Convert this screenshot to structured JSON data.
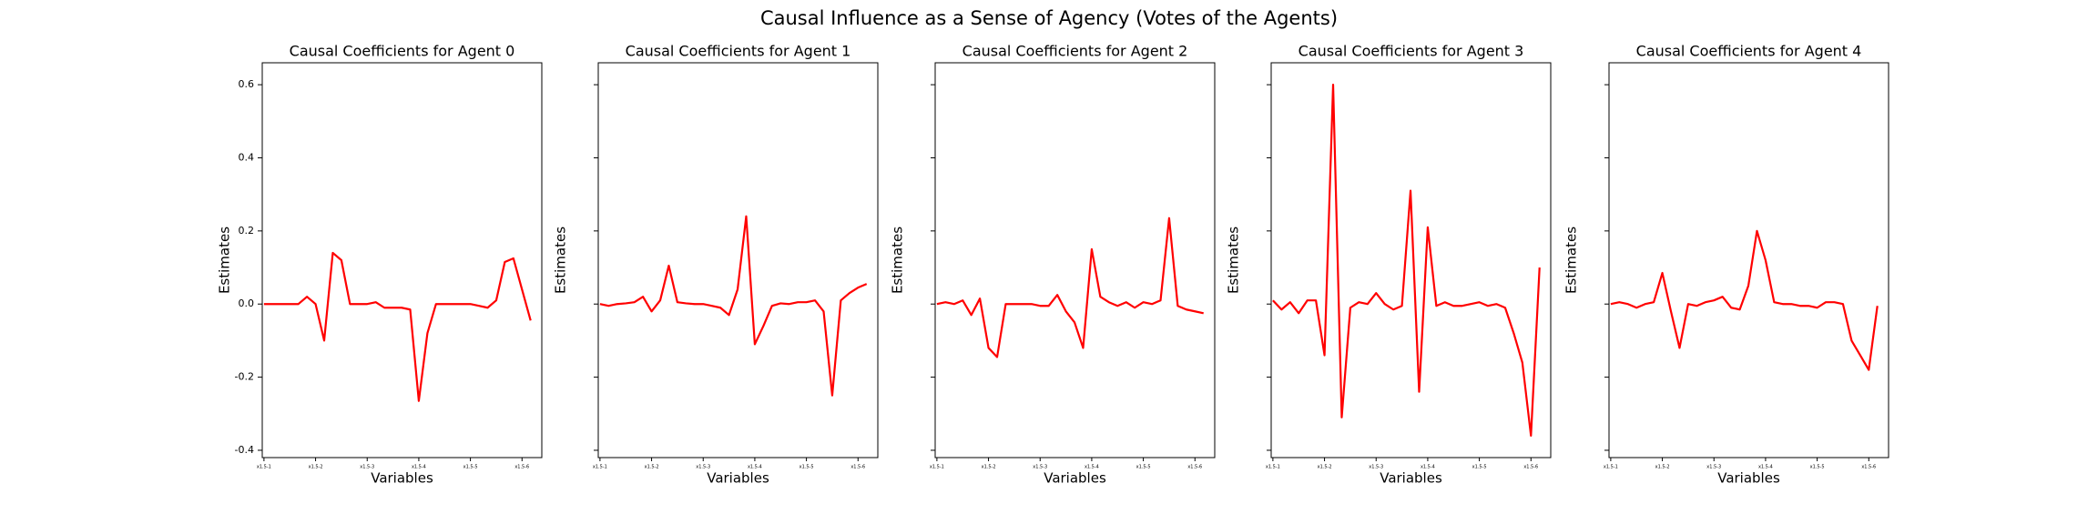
{
  "title": "Causal Influence as a Sense of Agency (Votes of the Agents)",
  "chart_data": [
    {
      "type": "line",
      "title": "Causal Coefficients for Agent 0",
      "xlabel": "Variables",
      "ylabel": "Estimates",
      "color": "#ff0000",
      "xlim": [
        -0.2,
        32.3
      ],
      "ylim": [
        -0.42,
        0.66
      ],
      "xticks": [
        {
          "value": 0,
          "label": "x1.5-1"
        },
        {
          "value": 6,
          "label": "x1.5-2"
        },
        {
          "value": 12,
          "label": "x1.5-3"
        },
        {
          "value": 18,
          "label": "x1.5-4"
        },
        {
          "value": 24,
          "label": "x1.5-5"
        },
        {
          "value": 30,
          "label": "x1.5-6"
        }
      ],
      "yticks": [
        -0.4,
        -0.2,
        {
          "value": 0,
          "label": "0.0"
        },
        0.2,
        0.4,
        0.6
      ],
      "x": [
        0,
        1,
        2,
        3,
        4,
        5,
        6,
        7,
        8,
        9,
        10,
        11,
        12,
        13,
        14,
        15,
        16,
        17,
        18,
        19,
        20,
        21,
        22,
        23,
        24,
        25,
        26,
        27,
        28,
        29,
        30,
        31
      ],
      "values": [
        0,
        0,
        0,
        0,
        0,
        0.02,
        0,
        -0.1,
        0.14,
        0.12,
        0,
        0,
        0,
        0.005,
        -0.01,
        -0.01,
        -0.01,
        -0.015,
        -0.265,
        -0.08,
        0,
        0,
        0,
        0,
        0,
        -0.005,
        -0.01,
        0.01,
        0.115,
        0.125,
        0.04,
        -0.045
      ]
    },
    {
      "type": "line",
      "title": "Causal Coefficients for Agent 1",
      "xlabel": "Variables",
      "ylabel": "Estimates",
      "color": "#ff0000",
      "xlim": [
        -0.2,
        32.3
      ],
      "ylim": [
        -0.42,
        0.66
      ],
      "xticks": [
        {
          "value": 0,
          "label": "x1.5-1"
        },
        {
          "value": 6,
          "label": "x1.5-2"
        },
        {
          "value": 12,
          "label": "x1.5-3"
        },
        {
          "value": 18,
          "label": "x1.5-4"
        },
        {
          "value": 24,
          "label": "x1.5-5"
        },
        {
          "value": 30,
          "label": "x1.5-6"
        }
      ],
      "x": [
        0,
        1,
        2,
        3,
        4,
        5,
        6,
        7,
        8,
        9,
        10,
        11,
        12,
        13,
        14,
        15,
        16,
        17,
        18,
        19,
        20,
        21,
        22,
        23,
        24,
        25,
        26,
        27,
        28,
        29,
        30,
        31
      ],
      "values": [
        0,
        -0.005,
        0,
        0.002,
        0.005,
        0.02,
        -0.02,
        0.01,
        0.105,
        0.005,
        0.002,
        0,
        0,
        -0.005,
        -0.01,
        -0.03,
        0.04,
        0.24,
        -0.11,
        -0.06,
        -0.005,
        0.002,
        0,
        0.005,
        0.005,
        0.01,
        -0.02,
        -0.25,
        0.01,
        0.03,
        0.045,
        0.055
      ]
    },
    {
      "type": "line",
      "title": "Causal Coefficients for Agent 2",
      "xlabel": "Variables",
      "ylabel": "Estimates",
      "color": "#ff0000",
      "xlim": [
        -0.2,
        32.3
      ],
      "ylim": [
        -0.42,
        0.66
      ],
      "xticks": [
        {
          "value": 0,
          "label": "x1.5-1"
        },
        {
          "value": 6,
          "label": "x1.5-2"
        },
        {
          "value": 12,
          "label": "x1.5-3"
        },
        {
          "value": 18,
          "label": "x1.5-4"
        },
        {
          "value": 24,
          "label": "x1.5-5"
        },
        {
          "value": 30,
          "label": "x1.5-6"
        }
      ],
      "x": [
        0,
        1,
        2,
        3,
        4,
        5,
        6,
        7,
        8,
        9,
        10,
        11,
        12,
        13,
        14,
        15,
        16,
        17,
        18,
        19,
        20,
        21,
        22,
        23,
        24,
        25,
        26,
        27,
        28,
        29,
        30,
        31
      ],
      "values": [
        0,
        0.005,
        0,
        0.01,
        -0.03,
        0.015,
        -0.12,
        -0.145,
        0,
        0,
        0,
        0,
        -0.005,
        -0.005,
        0.025,
        -0.02,
        -0.05,
        -0.12,
        0.15,
        0.02,
        0.005,
        -0.005,
        0.005,
        -0.01,
        0.005,
        0,
        0.01,
        0.235,
        -0.005,
        -0.015,
        -0.02,
        -0.025
      ]
    },
    {
      "type": "line",
      "title": "Causal Coefficients for Agent 3",
      "xlabel": "Variables",
      "ylabel": "Estimates",
      "color": "#ff0000",
      "xlim": [
        -0.2,
        32.3
      ],
      "ylim": [
        -0.42,
        0.66
      ],
      "xticks": [
        {
          "value": 0,
          "label": "x1.5-1"
        },
        {
          "value": 6,
          "label": "x1.5-2"
        },
        {
          "value": 12,
          "label": "x1.5-3"
        },
        {
          "value": 18,
          "label": "x1.5-4"
        },
        {
          "value": 24,
          "label": "x1.5-5"
        },
        {
          "value": 30,
          "label": "x1.5-6"
        }
      ],
      "x": [
        0,
        1,
        2,
        3,
        4,
        5,
        6,
        7,
        8,
        9,
        10,
        11,
        12,
        13,
        14,
        15,
        16,
        17,
        18,
        19,
        20,
        21,
        22,
        23,
        24,
        25,
        26,
        27,
        28,
        29,
        30,
        31
      ],
      "values": [
        0.01,
        -0.015,
        0.005,
        -0.025,
        0.01,
        0.01,
        -0.14,
        0.6,
        -0.31,
        -0.01,
        0.005,
        0,
        0.03,
        0,
        -0.015,
        -0.005,
        0.31,
        -0.24,
        0.21,
        -0.005,
        0.005,
        -0.005,
        -0.005,
        0,
        0.005,
        -0.005,
        0,
        -0.01,
        -0.08,
        -0.16,
        -0.36,
        0.1
      ]
    },
    {
      "type": "line",
      "title": "Causal Coefficients for Agent 4",
      "xlabel": "Variables",
      "ylabel": "Estimates",
      "color": "#ff0000",
      "xlim": [
        -0.2,
        32.3
      ],
      "ylim": [
        -0.42,
        0.66
      ],
      "xticks": [
        {
          "value": 0,
          "label": "x1.5-1"
        },
        {
          "value": 6,
          "label": "x1.5-2"
        },
        {
          "value": 12,
          "label": "x1.5-3"
        },
        {
          "value": 18,
          "label": "x1.5-4"
        },
        {
          "value": 24,
          "label": "x1.5-5"
        },
        {
          "value": 30,
          "label": "x1.5-6"
        }
      ],
      "x": [
        0,
        1,
        2,
        3,
        4,
        5,
        6,
        7,
        8,
        9,
        10,
        11,
        12,
        13,
        14,
        15,
        16,
        17,
        18,
        19,
        20,
        21,
        22,
        23,
        24,
        25,
        26,
        27,
        28,
        29,
        30,
        31
      ],
      "values": [
        0,
        0.005,
        0,
        -0.01,
        0,
        0.005,
        0.085,
        -0.02,
        -0.12,
        0,
        -0.005,
        0.005,
        0.01,
        0.02,
        -0.01,
        -0.015,
        0.05,
        0.2,
        0.12,
        0.005,
        0,
        0,
        -0.005,
        -0.005,
        -0.01,
        0.005,
        0.005,
        0,
        -0.1,
        -0.14,
        -0.18,
        -0.005
      ]
    }
  ]
}
